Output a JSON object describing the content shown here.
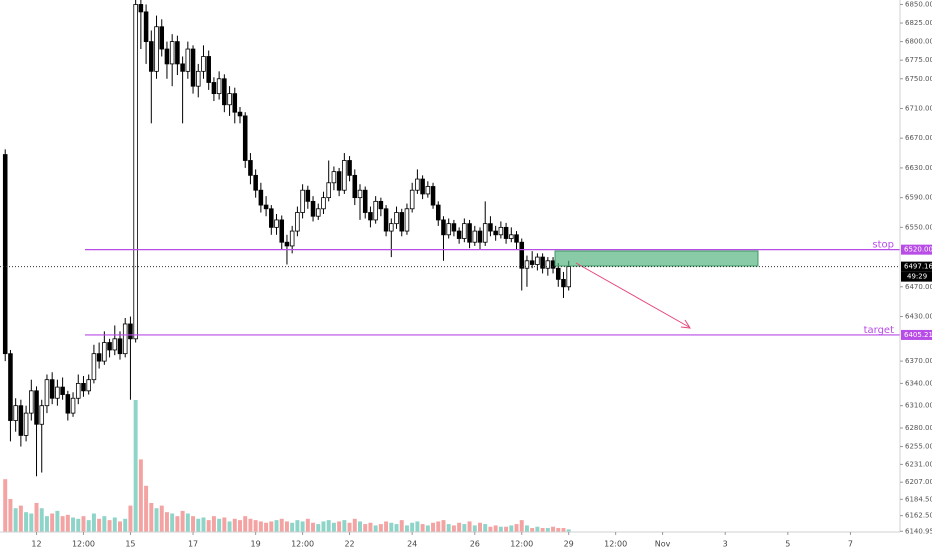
{
  "chart_data": {
    "type": "candlestick",
    "candles": [
      [
        6648,
        6655,
        6370,
        6380
      ],
      [
        6380,
        6385,
        6262,
        6290
      ],
      [
        6290,
        6320,
        6275,
        6310
      ],
      [
        6310,
        6318,
        6255,
        6270
      ],
      [
        6270,
        6310,
        6262,
        6300
      ],
      [
        6300,
        6345,
        6290,
        6330
      ],
      [
        6330,
        6336,
        6215,
        6285
      ],
      [
        6285,
        6318,
        6220,
        6310
      ],
      [
        6310,
        6352,
        6300,
        6345
      ],
      [
        6345,
        6355,
        6312,
        6320
      ],
      [
        6320,
        6345,
        6310,
        6335
      ],
      [
        6335,
        6348,
        6318,
        6325
      ],
      [
        6325,
        6330,
        6290,
        6300
      ],
      [
        6300,
        6328,
        6295,
        6320
      ],
      [
        6320,
        6352,
        6312,
        6340
      ],
      [
        6340,
        6350,
        6322,
        6330
      ],
      [
        6330,
        6352,
        6325,
        6345
      ],
      [
        6345,
        6392,
        6340,
        6380
      ],
      [
        6380,
        6395,
        6360,
        6370
      ],
      [
        6370,
        6410,
        6365,
        6395
      ],
      [
        6395,
        6400,
        6375,
        6385
      ],
      [
        6385,
        6418,
        6378,
        6400
      ],
      [
        6400,
        6410,
        6372,
        6380
      ],
      [
        6380,
        6428,
        6375,
        6420
      ],
      [
        6420,
        6430,
        6318,
        6400
      ],
      [
        6400,
        6856,
        6395,
        6850
      ],
      [
        6850,
        6856,
        6790,
        6840
      ],
      [
        6840,
        6850,
        6770,
        6800
      ],
      [
        6800,
        6815,
        6690,
        6760
      ],
      [
        6760,
        6835,
        6750,
        6820
      ],
      [
        6820,
        6830,
        6780,
        6790
      ],
      [
        6790,
        6800,
        6750,
        6770
      ],
      [
        6770,
        6810,
        6740,
        6800
      ],
      [
        6800,
        6808,
        6755,
        6770
      ],
      [
        6770,
        6780,
        6690,
        6760
      ],
      [
        6760,
        6800,
        6750,
        6790
      ],
      [
        6790,
        6795,
        6730,
        6740
      ],
      [
        6740,
        6770,
        6725,
        6760
      ],
      [
        6760,
        6795,
        6750,
        6780
      ],
      [
        6780,
        6788,
        6735,
        6745
      ],
      [
        6745,
        6752,
        6720,
        6730
      ],
      [
        6730,
        6760,
        6722,
        6750
      ],
      [
        6750,
        6756,
        6705,
        6715
      ],
      [
        6715,
        6740,
        6700,
        6730
      ],
      [
        6730,
        6738,
        6690,
        6705
      ],
      [
        6705,
        6712,
        6690,
        6700
      ],
      [
        6700,
        6705,
        6630,
        6640
      ],
      [
        6640,
        6650,
        6608,
        6620
      ],
      [
        6620,
        6628,
        6590,
        6600
      ],
      [
        6600,
        6610,
        6570,
        6580
      ],
      [
        6580,
        6592,
        6565,
        6575
      ],
      [
        6575,
        6580,
        6540,
        6550
      ],
      [
        6550,
        6568,
        6540,
        6560
      ],
      [
        6560,
        6566,
        6520,
        6530
      ],
      [
        6530,
        6540,
        6500,
        6525
      ],
      [
        6525,
        6552,
        6515,
        6545
      ],
      [
        6545,
        6578,
        6538,
        6570
      ],
      [
        6570,
        6608,
        6562,
        6600
      ],
      [
        6600,
        6606,
        6575,
        6585
      ],
      [
        6585,
        6592,
        6558,
        6565
      ],
      [
        6565,
        6582,
        6560,
        6575
      ],
      [
        6575,
        6598,
        6568,
        6590
      ],
      [
        6590,
        6640,
        6585,
        6610
      ],
      [
        6610,
        6632,
        6600,
        6625
      ],
      [
        6625,
        6630,
        6592,
        6600
      ],
      [
        6600,
        6650,
        6595,
        6640
      ],
      [
        6640,
        6646,
        6612,
        6620
      ],
      [
        6620,
        6628,
        6580,
        6590
      ],
      [
        6590,
        6608,
        6560,
        6600
      ],
      [
        6600,
        6605,
        6562,
        6570
      ],
      [
        6570,
        6578,
        6550,
        6560
      ],
      [
        6560,
        6592,
        6555,
        6585
      ],
      [
        6585,
        6590,
        6565,
        6575
      ],
      [
        6575,
        6580,
        6538,
        6545
      ],
      [
        6545,
        6562,
        6510,
        6555
      ],
      [
        6555,
        6578,
        6548,
        6570
      ],
      [
        6570,
        6575,
        6538,
        6545
      ],
      [
        6545,
        6582,
        6540,
        6575
      ],
      [
        6575,
        6610,
        6570,
        6600
      ],
      [
        6600,
        6628,
        6595,
        6615
      ],
      [
        6615,
        6620,
        6588,
        6595
      ],
      [
        6595,
        6612,
        6590,
        6605
      ],
      [
        6605,
        6610,
        6575,
        6580
      ],
      [
        6580,
        6585,
        6552,
        6560
      ],
      [
        6560,
        6565,
        6505,
        6540
      ],
      [
        6540,
        6562,
        6535,
        6555
      ],
      [
        6555,
        6560,
        6538,
        6545
      ],
      [
        6545,
        6550,
        6528,
        6535
      ],
      [
        6535,
        6562,
        6530,
        6555
      ],
      [
        6555,
        6560,
        6522,
        6530
      ],
      [
        6530,
        6552,
        6525,
        6545
      ],
      [
        6545,
        6550,
        6520,
        6530
      ],
      [
        6530,
        6585,
        6525,
        6555
      ],
      [
        6555,
        6565,
        6538,
        6545
      ],
      [
        6545,
        6552,
        6532,
        6540
      ],
      [
        6540,
        6558,
        6535,
        6550
      ],
      [
        6550,
        6556,
        6528,
        6535
      ],
      [
        6535,
        6550,
        6530,
        6540
      ],
      [
        6540,
        6545,
        6520,
        6530
      ],
      [
        6530,
        6535,
        6465,
        6495
      ],
      [
        6495,
        6512,
        6470,
        6505
      ],
      [
        6505,
        6518,
        6495,
        6500
      ],
      [
        6500,
        6515,
        6492,
        6510
      ],
      [
        6510,
        6515,
        6488,
        6495
      ],
      [
        6495,
        6510,
        6485,
        6505
      ],
      [
        6505,
        6510,
        6488,
        6495
      ],
      [
        6495,
        6502,
        6470,
        6480
      ],
      [
        6480,
        6490,
        6455,
        6470
      ],
      [
        6470,
        6505,
        6465,
        6497.16
      ]
    ],
    "volume": [
      40,
      25,
      18,
      20,
      15,
      14,
      22,
      18,
      12,
      14,
      16,
      12,
      13,
      11,
      10,
      12,
      9,
      14,
      10,
      12,
      9,
      11,
      8,
      10,
      20,
      100,
      55,
      35,
      22,
      18,
      20,
      15,
      14,
      12,
      16,
      14,
      12,
      10,
      11,
      9,
      12,
      10,
      11,
      8,
      10,
      9,
      12,
      10,
      9,
      8,
      7,
      8,
      9,
      10,
      8,
      7,
      9,
      8,
      10,
      7,
      6,
      8,
      9,
      7,
      8,
      9,
      7,
      10,
      8,
      6,
      7,
      5,
      6,
      8,
      7,
      6,
      9,
      5,
      7,
      8,
      6,
      5,
      7,
      8,
      9,
      6,
      5,
      7,
      6,
      8,
      5,
      7,
      6,
      4,
      5,
      4,
      4,
      5,
      6,
      9,
      5,
      3,
      4,
      3,
      3,
      4,
      3,
      3,
      2
    ],
    "up_color": "#ffffff",
    "down_color": "#000000",
    "volume_up_color": "#8fd4c8",
    "volume_down_color": "#f4a3a3",
    "ylim": [
      6140,
      6856
    ],
    "yticks": [
      {
        "value": 6850,
        "label": "6850.00"
      },
      {
        "value": 6825,
        "label": "6825.00"
      },
      {
        "value": 6800,
        "label": "6800.00"
      },
      {
        "value": 6775,
        "label": "6775.00"
      },
      {
        "value": 6750,
        "label": "6750.00"
      },
      {
        "value": 6710,
        "label": "6710.00"
      },
      {
        "value": 6670,
        "label": "6670.00"
      },
      {
        "value": 6630,
        "label": "6630.00"
      },
      {
        "value": 6590,
        "label": "6590.00"
      },
      {
        "value": 6550,
        "label": "6550.00"
      },
      {
        "value": 6470,
        "label": "6470.00"
      },
      {
        "value": 6430,
        "label": "6430.00"
      },
      {
        "value": 6370,
        "label": "6370.00"
      },
      {
        "value": 6340,
        "label": "6340.00"
      },
      {
        "value": 6310,
        "label": "6310.00"
      },
      {
        "value": 6280,
        "label": "6280.00"
      },
      {
        "value": 6255,
        "label": "6255.00"
      },
      {
        "value": 6231,
        "label": "6231.00"
      },
      {
        "value": 6207,
        "label": "6207.00"
      },
      {
        "value": 6184,
        "label": "6184.50"
      },
      {
        "value": 6162,
        "label": "6162.50"
      },
      6140.95
    ],
    "xlim": [
      -1,
      171.5
    ],
    "xticks": [
      {
        "value": 6,
        "label": "12"
      },
      {
        "value": 15,
        "label": "12:00"
      },
      {
        "value": 24,
        "label": "15"
      },
      {
        "value": 36,
        "label": "17"
      },
      {
        "value": 48,
        "label": "19"
      },
      {
        "value": 57,
        "label": "12:00"
      },
      {
        "value": 66,
        "label": "22"
      },
      {
        "value": 78,
        "label": "24"
      },
      {
        "value": 90,
        "label": "26"
      },
      {
        "value": 99,
        "label": "12:00"
      },
      {
        "value": 108,
        "label": "29"
      },
      {
        "value": 117,
        "label": "12:00"
      },
      {
        "value": 126,
        "label": "Nov"
      },
      {
        "value": 138,
        "label": "3"
      },
      {
        "value": 150,
        "label": "5"
      },
      {
        "value": 162,
        "label": "7"
      }
    ],
    "levels": [
      {
        "name": "stop",
        "value": 6520,
        "value_label": "6520.00",
        "color": "#b84ce6"
      },
      {
        "name": "target",
        "value": 6405.21,
        "value_label": "6405.21",
        "color": "#b84ce6"
      }
    ],
    "last_price": 6497.16,
    "countdown": "49:29"
  }
}
